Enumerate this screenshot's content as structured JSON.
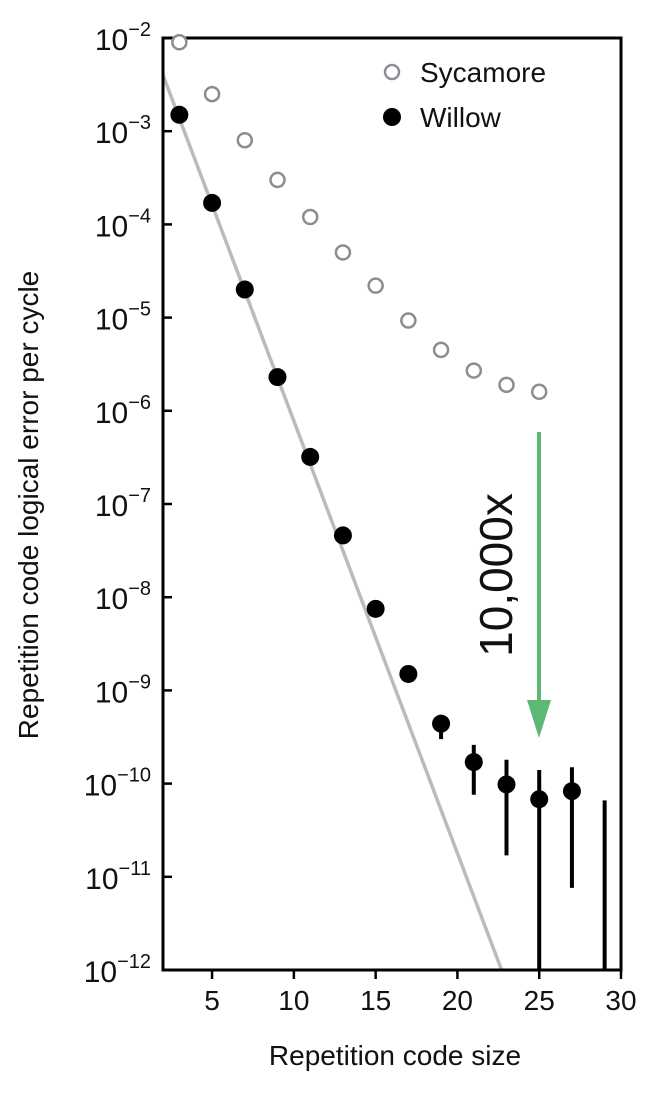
{
  "chart_data": {
    "type": "scatter",
    "x_label": "Repetition code size",
    "y_label": "Repetition code logical error per cycle",
    "log_y": true,
    "xlim": [
      2,
      30
    ],
    "xticks": [
      5,
      10,
      15,
      20,
      25,
      30
    ],
    "ylim": [
      1e-12,
      0.01
    ],
    "yticks": [
      {
        "value": 0.01,
        "label": "10−2"
      },
      {
        "value": 0.001,
        "label": "10−3"
      },
      {
        "value": 0.0001,
        "label": "10−4"
      },
      {
        "value": 1e-05,
        "label": "10−5"
      },
      {
        "value": 1e-06,
        "label": "10−6"
      },
      {
        "value": 1e-07,
        "label": "10−7"
      },
      {
        "value": 1e-08,
        "label": "10−8"
      },
      {
        "value": 1e-09,
        "label": "10−9"
      },
      {
        "value": 1e-10,
        "label": "10−10"
      },
      {
        "value": 1e-11,
        "label": "10−11"
      },
      {
        "value": 1e-12,
        "label": "10−12"
      }
    ],
    "legend": "top-right",
    "series": [
      {
        "name": "Sycamore",
        "color": "#8a8d91",
        "marker": "open",
        "x": [
          3,
          5,
          7,
          9,
          11,
          13,
          15,
          17,
          19,
          21,
          23,
          25
        ],
        "values": [
          0.009,
          0.0025,
          0.0008,
          0.0003,
          0.00012,
          5e-05,
          2.2e-05,
          9.3e-06,
          4.5e-06,
          2.7e-06,
          1.9e-06,
          1.6e-06
        ]
      },
      {
        "name": "Willow",
        "color": "#000000",
        "marker": "filled",
        "x": [
          3,
          5,
          7,
          9,
          11,
          13,
          15,
          17,
          19,
          21,
          23,
          25,
          27,
          29
        ],
        "values": [
          0.0015,
          0.00017,
          2e-05,
          2.3e-06,
          3.2e-07,
          4.6e-08,
          7.5e-09,
          1.5e-09,
          4.4e-10,
          1.7e-10,
          9.8e-11,
          6.8e-11,
          8.3e-11,
          null
        ],
        "error_low": [
          null,
          null,
          null,
          null,
          null,
          null,
          null,
          null,
          3e-10,
          7.6e-11,
          1.7e-11,
          1e-12,
          7.6e-12,
          1e-12
        ],
        "error_high": [
          null,
          null,
          null,
          null,
          null,
          null,
          null,
          null,
          5.4e-10,
          2.6e-10,
          1.8e-10,
          1.4e-10,
          1.5e-10,
          6.6e-11
        ]
      }
    ],
    "fit": {
      "color": "#b8bcc2",
      "x": [
        2,
        22.7
      ],
      "values": [
        0.004,
        1e-12
      ]
    },
    "annotation": {
      "text": "10,000x",
      "color": "#5cb874"
    }
  }
}
